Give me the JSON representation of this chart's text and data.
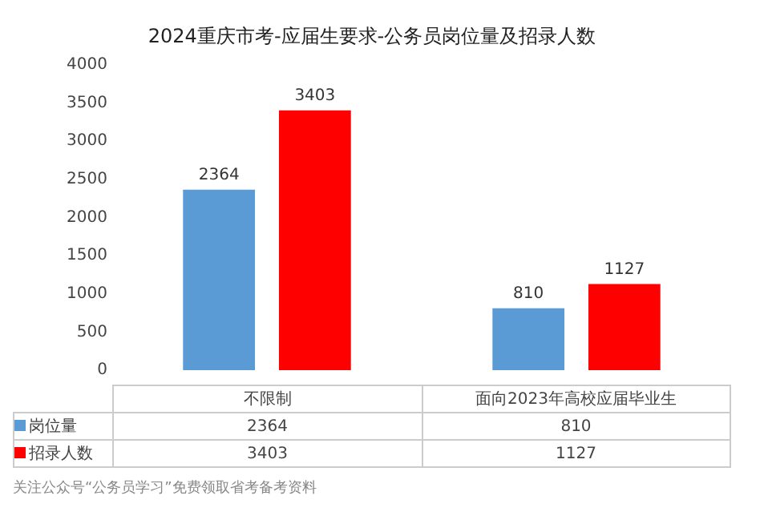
{
  "chart_data": {
    "type": "bar",
    "title": "2024重庆市考-应届生要求-公务员岗位量及招录人数",
    "categories": [
      "不限制",
      "面向2023年高校应届毕业生"
    ],
    "series": [
      {
        "name": "岗位量",
        "color": "#5b9bd5",
        "values": [
          2364,
          810
        ]
      },
      {
        "name": "招录人数",
        "color": "#ff0000",
        "values": [
          3403,
          1127
        ]
      }
    ],
    "ylim": [
      0,
      4000
    ],
    "yticks": [
      0,
      500,
      1000,
      1500,
      2000,
      2500,
      3000,
      3500,
      4000
    ],
    "grid": false,
    "legend": "bottom",
    "data_labels": true,
    "annotations": [
      "2364",
      "810",
      "3403",
      "1127",
      "关注公众号“公务员学习”免费领取省考备考资料"
    ]
  }
}
